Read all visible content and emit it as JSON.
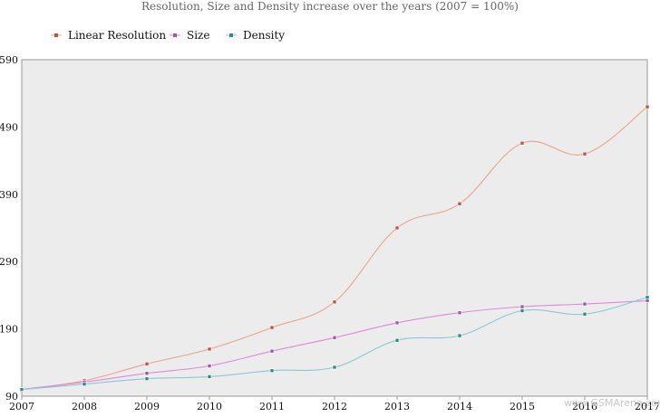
{
  "chart_data": {
    "type": "line",
    "title": "Resolution, Size and Density increase over the years (2007 = 100%)",
    "categories": [
      "2007",
      "2008",
      "2009",
      "2010",
      "2011",
      "2012",
      "2013",
      "2014",
      "2015",
      "2016",
      "2017"
    ],
    "ylim": [
      90,
      590
    ],
    "yticks": [
      "90",
      "190",
      "290",
      "390",
      "490",
      "590"
    ],
    "grid": false,
    "legend_position": "top-left",
    "series": [
      {
        "name": "Linear Resolution",
        "color": "#e8a48a",
        "marker": "#c0504d",
        "values": [
          100,
          113,
          138,
          160,
          192,
          230,
          340,
          376,
          466,
          450,
          520
        ]
      },
      {
        "name": "Size",
        "color": "#dd88dd",
        "marker": "#9b5aa6",
        "values": [
          100,
          111,
          124,
          135,
          157,
          177,
          199,
          214,
          223,
          227,
          232
        ]
      },
      {
        "name": "Density",
        "color": "#8cc6d6",
        "marker": "#2e8b8b",
        "values": [
          100,
          108,
          116,
          119,
          128,
          133,
          173,
          180,
          217,
          212,
          237
        ]
      }
    ]
  },
  "watermark": "www.GSMArena.com"
}
